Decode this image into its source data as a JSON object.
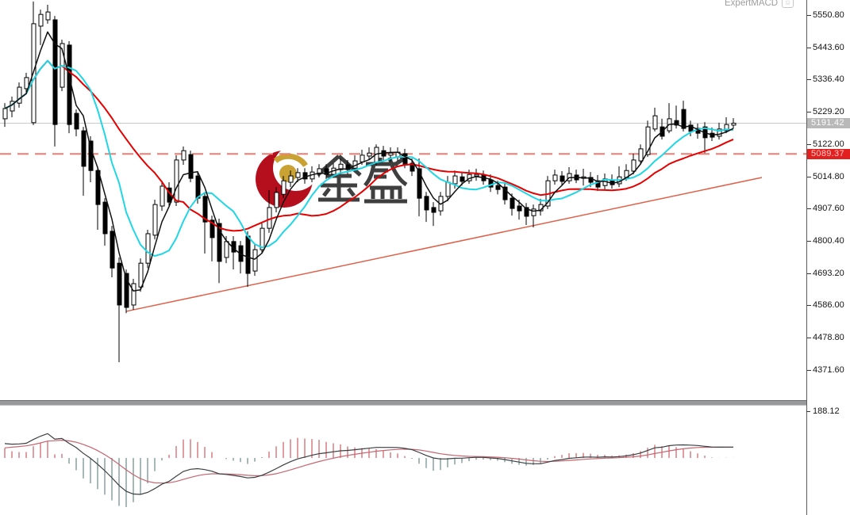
{
  "indicator": {
    "name": "ExpertMACD"
  },
  "icons": {
    "expert_advisor": "☺"
  },
  "watermark": {
    "text": "金盛",
    "crescent_color": "#b50f1d",
    "gold_color": "#c9a233",
    "text_color": "#3f3f3f"
  },
  "price_axis": {
    "ticks": [
      "5550.80",
      "5443.60",
      "5336.40",
      "5229.20",
      "5122.00",
      "5014.80",
      "4907.60",
      "4800.40",
      "4693.20",
      "4586.00",
      "4478.80",
      "4371.60"
    ],
    "last_price_label": "5191.42",
    "alert_price_label": "5089.37"
  },
  "macd_axis": {
    "max_label": "188.12"
  },
  "chart_data": {
    "type": "candlestick",
    "subpanes": [
      "price",
      "macd"
    ],
    "ylim": [
      4340,
      5600
    ],
    "grid": false,
    "last_price": 5191.42,
    "dashed_level": 5089.37,
    "price_ticks": [
      5550.8,
      5443.6,
      5336.4,
      5229.2,
      5122.0,
      5014.8,
      4907.6,
      4800.4,
      4693.2,
      4586.0,
      4478.8,
      4371.6
    ],
    "macd_scale_max": 188.12,
    "colors": {
      "bull_body": "#ffffff",
      "bear_body": "#000000",
      "candle_outline": "#000000",
      "ma_fast": "#101010",
      "ma_mid": "#1fd7e4",
      "ma_slow": "#e60000",
      "current_price_line": "#c9c9c9",
      "dashed_line": "#ef7d72",
      "trendline": "#e0604a",
      "hist_pos": "#c13b45",
      "hist_neg": "#4f7273",
      "macd_line": "#3a3f42",
      "signal_line": "#c76570"
    },
    "ma_lines": [
      {
        "name": "fast",
        "period": 4,
        "color": "#101010"
      },
      {
        "name": "mid",
        "period": 9,
        "color": "#1fd7e4"
      },
      {
        "name": "slow",
        "period": 18,
        "color": "#e60000"
      }
    ],
    "macd_params": {
      "fast": 12,
      "slow": 26,
      "signal": 9
    },
    "trendline": {
      "from_index": 17,
      "from_price": 4566,
      "to_index": 106,
      "to_price": 5011
    },
    "candles": [
      [
        5206,
        5258,
        5179,
        5240
      ],
      [
        5232,
        5280,
        5211,
        5264
      ],
      [
        5258,
        5327,
        5243,
        5311
      ],
      [
        5306,
        5359,
        5290,
        5343
      ],
      [
        5193,
        5596,
        5185,
        5522
      ],
      [
        5514,
        5569,
        5451,
        5553
      ],
      [
        5535,
        5585,
        5522,
        5561
      ],
      [
        5535,
        5548,
        5114,
        5187
      ],
      [
        5311,
        5469,
        5298,
        5456
      ],
      [
        5451,
        5464,
        5158,
        5187
      ],
      [
        5224,
        5237,
        5148,
        5172
      ],
      [
        5166,
        5179,
        4950,
        5048
      ],
      [
        5132,
        5148,
        4995,
        5034
      ],
      [
        5034,
        5048,
        4837,
        4921
      ],
      [
        4929,
        4942,
        4784,
        4824
      ],
      [
        4832,
        4850,
        4679,
        4710
      ],
      [
        4726,
        4745,
        4397,
        4587
      ],
      [
        4692,
        4705,
        4560,
        4579
      ],
      [
        4587,
        4674,
        4571,
        4658
      ],
      [
        4647,
        4742,
        4631,
        4726
      ],
      [
        4726,
        4837,
        4710,
        4824
      ],
      [
        4819,
        4937,
        4805,
        4921
      ],
      [
        4916,
        5000,
        4900,
        4982
      ],
      [
        4976,
        4995,
        4911,
        4929
      ],
      [
        4929,
        5085,
        4916,
        5069
      ],
      [
        5069,
        5114,
        5053,
        5100
      ],
      [
        5087,
        5100,
        4995,
        5008
      ],
      [
        5016,
        5032,
        4924,
        4942
      ],
      [
        4948,
        4963,
        4758,
        4863
      ],
      [
        4869,
        4884,
        4732,
        4811
      ],
      [
        4858,
        4874,
        4660,
        4732
      ],
      [
        4745,
        4816,
        4726,
        4798
      ],
      [
        4798,
        4816,
        4705,
        4763
      ],
      [
        4784,
        4800,
        4692,
        4732
      ],
      [
        4816,
        4832,
        4647,
        4692
      ],
      [
        4700,
        4790,
        4684,
        4771
      ],
      [
        4771,
        4858,
        4758,
        4842
      ],
      [
        4842,
        4969,
        4827,
        4911
      ],
      [
        4911,
        4979,
        4895,
        4961
      ],
      [
        4955,
        5016,
        4942,
        5000
      ],
      [
        4995,
        5034,
        4979,
        5016
      ],
      [
        5011,
        5042,
        4995,
        5027
      ],
      [
        5027,
        5042,
        4990,
        5006
      ],
      [
        5006,
        5048,
        4995,
        5029
      ],
      [
        5024,
        5055,
        5011,
        5040
      ],
      [
        5040,
        5055,
        5006,
        5021
      ],
      [
        5021,
        5058,
        5011,
        5042
      ],
      [
        5037,
        5074,
        5027,
        5055
      ],
      [
        5053,
        5069,
        5021,
        5037
      ],
      [
        5042,
        5085,
        5032,
        5066
      ],
      [
        5063,
        5103,
        5053,
        5085
      ],
      [
        5082,
        5111,
        5069,
        5092
      ],
      [
        5061,
        5121,
        5050,
        5111
      ],
      [
        5100,
        5116,
        5069,
        5082
      ],
      [
        5085,
        5111,
        5063,
        5092
      ],
      [
        5079,
        5111,
        5066,
        5095
      ],
      [
        5090,
        5106,
        5042,
        5055
      ],
      [
        5058,
        5074,
        5016,
        5032
      ],
      [
        5040,
        5074,
        4882,
        4942
      ],
      [
        4948,
        4963,
        4863,
        4903
      ],
      [
        4911,
        4929,
        4850,
        4895
      ],
      [
        4900,
        4963,
        4884,
        4948
      ],
      [
        4948,
        5016,
        4932,
        4995
      ],
      [
        4990,
        5034,
        4974,
        5016
      ],
      [
        5013,
        5029,
        4984,
        4998
      ],
      [
        5000,
        5037,
        4990,
        5021
      ],
      [
        5016,
        5040,
        5000,
        5021
      ],
      [
        5019,
        5034,
        4987,
        5000
      ],
      [
        5003,
        5021,
        4963,
        4979
      ],
      [
        4984,
        5000,
        4955,
        4971
      ],
      [
        4979,
        4995,
        4921,
        4937
      ],
      [
        4942,
        4958,
        4884,
        4908
      ],
      [
        4916,
        4937,
        4871,
        4900
      ],
      [
        4911,
        4926,
        4853,
        4882
      ],
      [
        4884,
        4921,
        4845,
        4906
      ],
      [
        4900,
        4940,
        4884,
        4921
      ],
      [
        4916,
        5016,
        4906,
        5000
      ],
      [
        5000,
        5037,
        4987,
        5019
      ],
      [
        5016,
        5032,
        4984,
        4998
      ],
      [
        5000,
        5045,
        4990,
        5024
      ],
      [
        5019,
        5037,
        4992,
        5003
      ],
      [
        5008,
        5040,
        4984,
        5013
      ],
      [
        5011,
        5029,
        4979,
        4995
      ],
      [
        5000,
        5019,
        4966,
        4979
      ],
      [
        4984,
        5024,
        4971,
        5006
      ],
      [
        5000,
        5021,
        4974,
        4987
      ],
      [
        4990,
        5048,
        4979,
        5013
      ],
      [
        5011,
        5055,
        5000,
        5034
      ],
      [
        5032,
        5090,
        5021,
        5069
      ],
      [
        5066,
        5121,
        5055,
        5106
      ],
      [
        5087,
        5200,
        5079,
        5179
      ],
      [
        5172,
        5243,
        5164,
        5216
      ],
      [
        5179,
        5206,
        5137,
        5148
      ],
      [
        5166,
        5258,
        5158,
        5206
      ],
      [
        5200,
        5250,
        5174,
        5185
      ],
      [
        5237,
        5266,
        5164,
        5174
      ],
      [
        5185,
        5200,
        5148,
        5164
      ],
      [
        5174,
        5190,
        5140,
        5158
      ],
      [
        5179,
        5195,
        5092,
        5143
      ],
      [
        5158,
        5177,
        5132,
        5145
      ],
      [
        5148,
        5193,
        5137,
        5172
      ],
      [
        5166,
        5211,
        5158,
        5187
      ],
      [
        5185,
        5208,
        5174,
        5191.42
      ]
    ]
  }
}
